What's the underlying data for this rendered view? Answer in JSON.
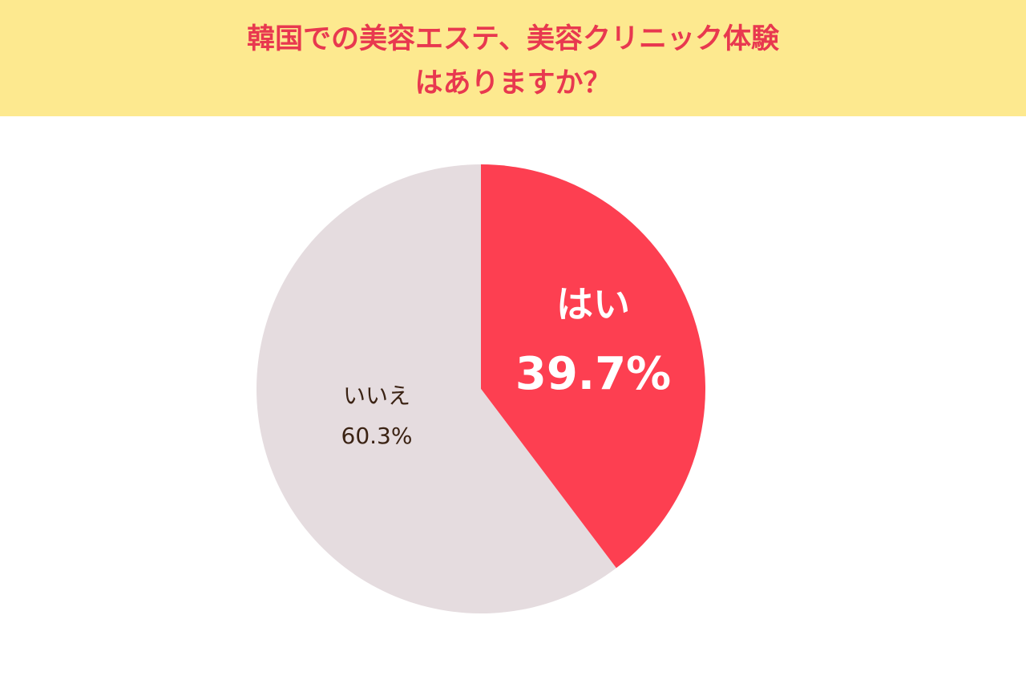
{
  "chart_data": {
    "type": "pie",
    "title": [
      "韓国での美容エステ、美容クリニック体験",
      "はありますか？"
    ],
    "categories": [
      "はい",
      "いいえ"
    ],
    "values": [
      39.7,
      60.3
    ],
    "value_labels": [
      "39.7%",
      "60.3%"
    ],
    "colors": [
      "#fd3f51",
      "#e5dcdf"
    ]
  }
}
